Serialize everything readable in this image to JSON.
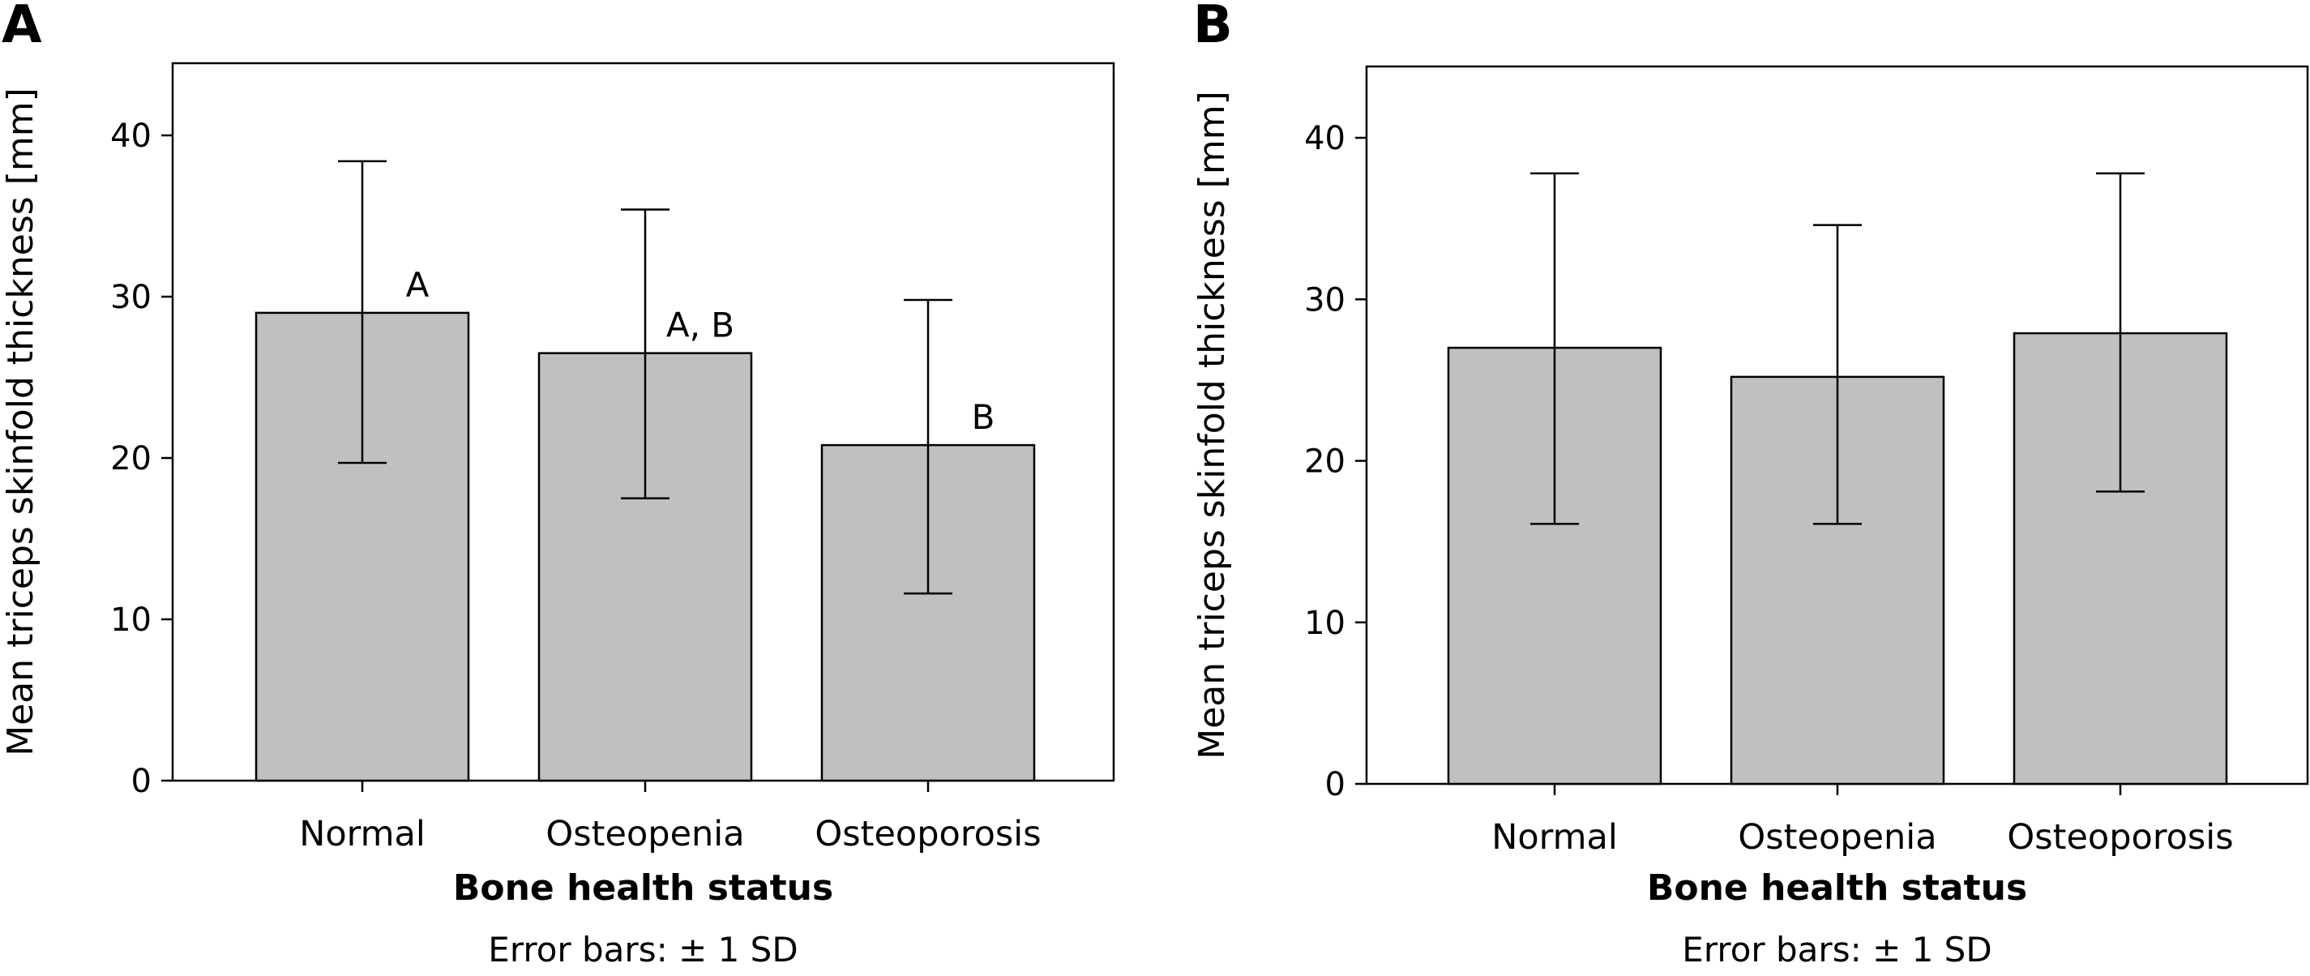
{
  "chart_data": [
    {
      "panel": "A",
      "type": "bar",
      "categories": [
        "Normal",
        "Osteopenia",
        "Osteoporosis"
      ],
      "values": [
        29.0,
        26.5,
        20.8
      ],
      "error_low": [
        19.7,
        17.5,
        11.6
      ],
      "error_high": [
        38.4,
        35.4,
        29.8
      ],
      "annotations": [
        "A",
        "A, B",
        "B"
      ],
      "xlabel": "Bone health status",
      "ylabel": "Mean triceps skinfold thickness [mm]",
      "note": "Error bars: ± 1 SD",
      "ylim": [
        0,
        44
      ],
      "yticks": [
        0,
        10,
        20,
        30,
        40
      ],
      "bar_color": "#c0c0c0",
      "grid": false
    },
    {
      "panel": "B",
      "type": "bar",
      "categories": [
        "Normal",
        "Osteopenia",
        "Osteoporosis"
      ],
      "values": [
        27.0,
        25.2,
        27.9
      ],
      "error_low": [
        16.1,
        16.1,
        18.1
      ],
      "error_high": [
        37.8,
        34.6,
        37.8
      ],
      "annotations": [
        "",
        "",
        ""
      ],
      "xlabel": "Bone health status",
      "ylabel": "Mean triceps skinfold thickness [mm]",
      "note": "Error bars: ± 1 SD",
      "ylim": [
        0,
        44
      ],
      "yticks": [
        0,
        10,
        20,
        30,
        40
      ],
      "bar_color": "#c0c0c0",
      "grid": false
    }
  ]
}
